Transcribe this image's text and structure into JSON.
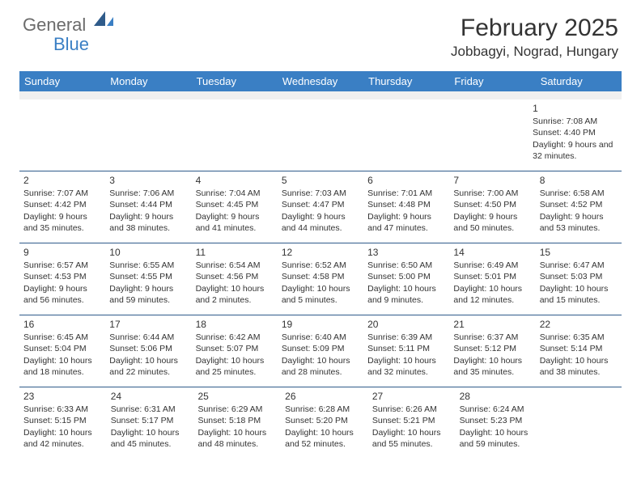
{
  "brand": {
    "part1": "General",
    "part2": "Blue"
  },
  "title": "February 2025",
  "location": "Jobbagyi, Nograd, Hungary",
  "colors": {
    "header_bg": "#3a7fc4",
    "header_text": "#ffffff",
    "border": "#2f5b8a",
    "text": "#333333",
    "logo_gray": "#6b6b6b",
    "logo_blue": "#3a7fc4",
    "spacer_bg": "#f0f0f0",
    "page_bg": "#ffffff"
  },
  "fonts": {
    "title_size": 30,
    "location_size": 17,
    "day_header_size": 13,
    "day_number_size": 12,
    "cell_text_size": 10.5
  },
  "day_headers": [
    "Sunday",
    "Monday",
    "Tuesday",
    "Wednesday",
    "Thursday",
    "Friday",
    "Saturday"
  ],
  "weeks": [
    [
      null,
      null,
      null,
      null,
      null,
      null,
      {
        "n": "1",
        "sunrise": "7:08 AM",
        "sunset": "4:40 PM",
        "daylight": "9 hours and 32 minutes."
      }
    ],
    [
      {
        "n": "2",
        "sunrise": "7:07 AM",
        "sunset": "4:42 PM",
        "daylight": "9 hours and 35 minutes."
      },
      {
        "n": "3",
        "sunrise": "7:06 AM",
        "sunset": "4:44 PM",
        "daylight": "9 hours and 38 minutes."
      },
      {
        "n": "4",
        "sunrise": "7:04 AM",
        "sunset": "4:45 PM",
        "daylight": "9 hours and 41 minutes."
      },
      {
        "n": "5",
        "sunrise": "7:03 AM",
        "sunset": "4:47 PM",
        "daylight": "9 hours and 44 minutes."
      },
      {
        "n": "6",
        "sunrise": "7:01 AM",
        "sunset": "4:48 PM",
        "daylight": "9 hours and 47 minutes."
      },
      {
        "n": "7",
        "sunrise": "7:00 AM",
        "sunset": "4:50 PM",
        "daylight": "9 hours and 50 minutes."
      },
      {
        "n": "8",
        "sunrise": "6:58 AM",
        "sunset": "4:52 PM",
        "daylight": "9 hours and 53 minutes."
      }
    ],
    [
      {
        "n": "9",
        "sunrise": "6:57 AM",
        "sunset": "4:53 PM",
        "daylight": "9 hours and 56 minutes."
      },
      {
        "n": "10",
        "sunrise": "6:55 AM",
        "sunset": "4:55 PM",
        "daylight": "9 hours and 59 minutes."
      },
      {
        "n": "11",
        "sunrise": "6:54 AM",
        "sunset": "4:56 PM",
        "daylight": "10 hours and 2 minutes."
      },
      {
        "n": "12",
        "sunrise": "6:52 AM",
        "sunset": "4:58 PM",
        "daylight": "10 hours and 5 minutes."
      },
      {
        "n": "13",
        "sunrise": "6:50 AM",
        "sunset": "5:00 PM",
        "daylight": "10 hours and 9 minutes."
      },
      {
        "n": "14",
        "sunrise": "6:49 AM",
        "sunset": "5:01 PM",
        "daylight": "10 hours and 12 minutes."
      },
      {
        "n": "15",
        "sunrise": "6:47 AM",
        "sunset": "5:03 PM",
        "daylight": "10 hours and 15 minutes."
      }
    ],
    [
      {
        "n": "16",
        "sunrise": "6:45 AM",
        "sunset": "5:04 PM",
        "daylight": "10 hours and 18 minutes."
      },
      {
        "n": "17",
        "sunrise": "6:44 AM",
        "sunset": "5:06 PM",
        "daylight": "10 hours and 22 minutes."
      },
      {
        "n": "18",
        "sunrise": "6:42 AM",
        "sunset": "5:07 PM",
        "daylight": "10 hours and 25 minutes."
      },
      {
        "n": "19",
        "sunrise": "6:40 AM",
        "sunset": "5:09 PM",
        "daylight": "10 hours and 28 minutes."
      },
      {
        "n": "20",
        "sunrise": "6:39 AM",
        "sunset": "5:11 PM",
        "daylight": "10 hours and 32 minutes."
      },
      {
        "n": "21",
        "sunrise": "6:37 AM",
        "sunset": "5:12 PM",
        "daylight": "10 hours and 35 minutes."
      },
      {
        "n": "22",
        "sunrise": "6:35 AM",
        "sunset": "5:14 PM",
        "daylight": "10 hours and 38 minutes."
      }
    ],
    [
      {
        "n": "23",
        "sunrise": "6:33 AM",
        "sunset": "5:15 PM",
        "daylight": "10 hours and 42 minutes."
      },
      {
        "n": "24",
        "sunrise": "6:31 AM",
        "sunset": "5:17 PM",
        "daylight": "10 hours and 45 minutes."
      },
      {
        "n": "25",
        "sunrise": "6:29 AM",
        "sunset": "5:18 PM",
        "daylight": "10 hours and 48 minutes."
      },
      {
        "n": "26",
        "sunrise": "6:28 AM",
        "sunset": "5:20 PM",
        "daylight": "10 hours and 52 minutes."
      },
      {
        "n": "27",
        "sunrise": "6:26 AM",
        "sunset": "5:21 PM",
        "daylight": "10 hours and 55 minutes."
      },
      {
        "n": "28",
        "sunrise": "6:24 AM",
        "sunset": "5:23 PM",
        "daylight": "10 hours and 59 minutes."
      },
      null
    ]
  ],
  "labels": {
    "sunrise": "Sunrise:",
    "sunset": "Sunset:",
    "daylight": "Daylight:"
  }
}
